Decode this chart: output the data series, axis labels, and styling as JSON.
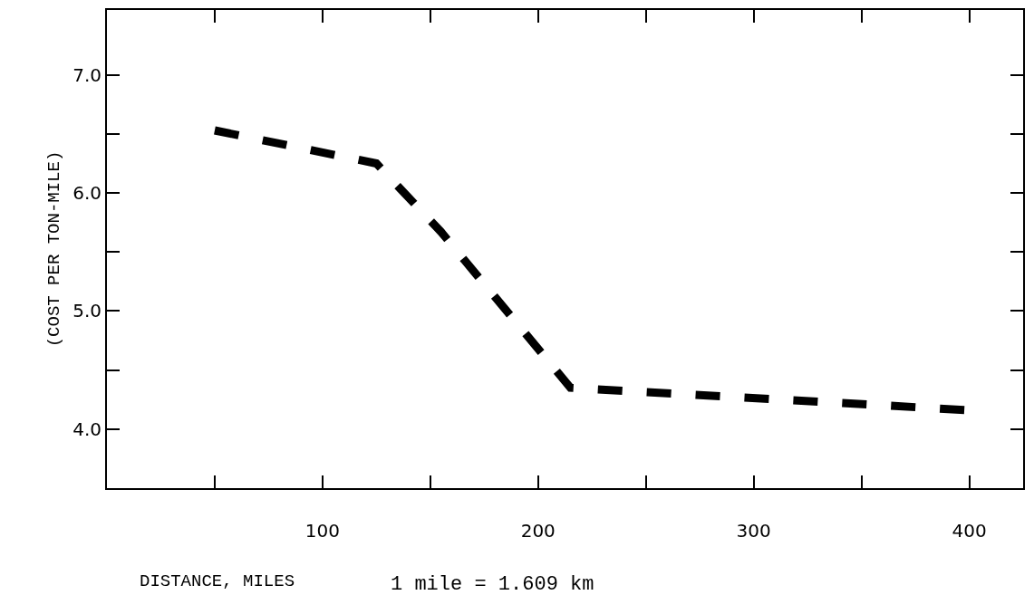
{
  "chart_data": {
    "type": "line",
    "xlabel": "DISTANCE, MILES",
    "ylabel": "(COST PER TON-MILE)",
    "annotations": [
      "1 mile = 1.609 km"
    ],
    "x": [
      50,
      125,
      155,
      215,
      400
    ],
    "series": [
      {
        "color": "#000000",
        "values": [
          6.53,
          6.25,
          5.67,
          4.35,
          4.16
        ]
      }
    ],
    "xlim": [
      0,
      425
    ],
    "xticks": [
      {
        "value": 50,
        "label": null
      },
      100,
      {
        "value": 150,
        "label": null
      },
      200,
      {
        "value": 250,
        "label": null
      },
      300,
      {
        "value": 350,
        "label": null
      },
      400
    ],
    "ylim": [
      3.5,
      7.55
    ],
    "yticks": [
      {
        "value": 4,
        "label": "4.0"
      },
      {
        "value": 4.5,
        "label": null
      },
      {
        "value": 5,
        "label": "5.0"
      },
      {
        "value": 5.5,
        "label": null
      },
      {
        "value": 6,
        "label": "6.0"
      },
      {
        "value": 6.5,
        "label": null
      },
      {
        "value": 7,
        "label": "7.0"
      }
    ],
    "marker": "none",
    "line_style": "dashed"
  }
}
